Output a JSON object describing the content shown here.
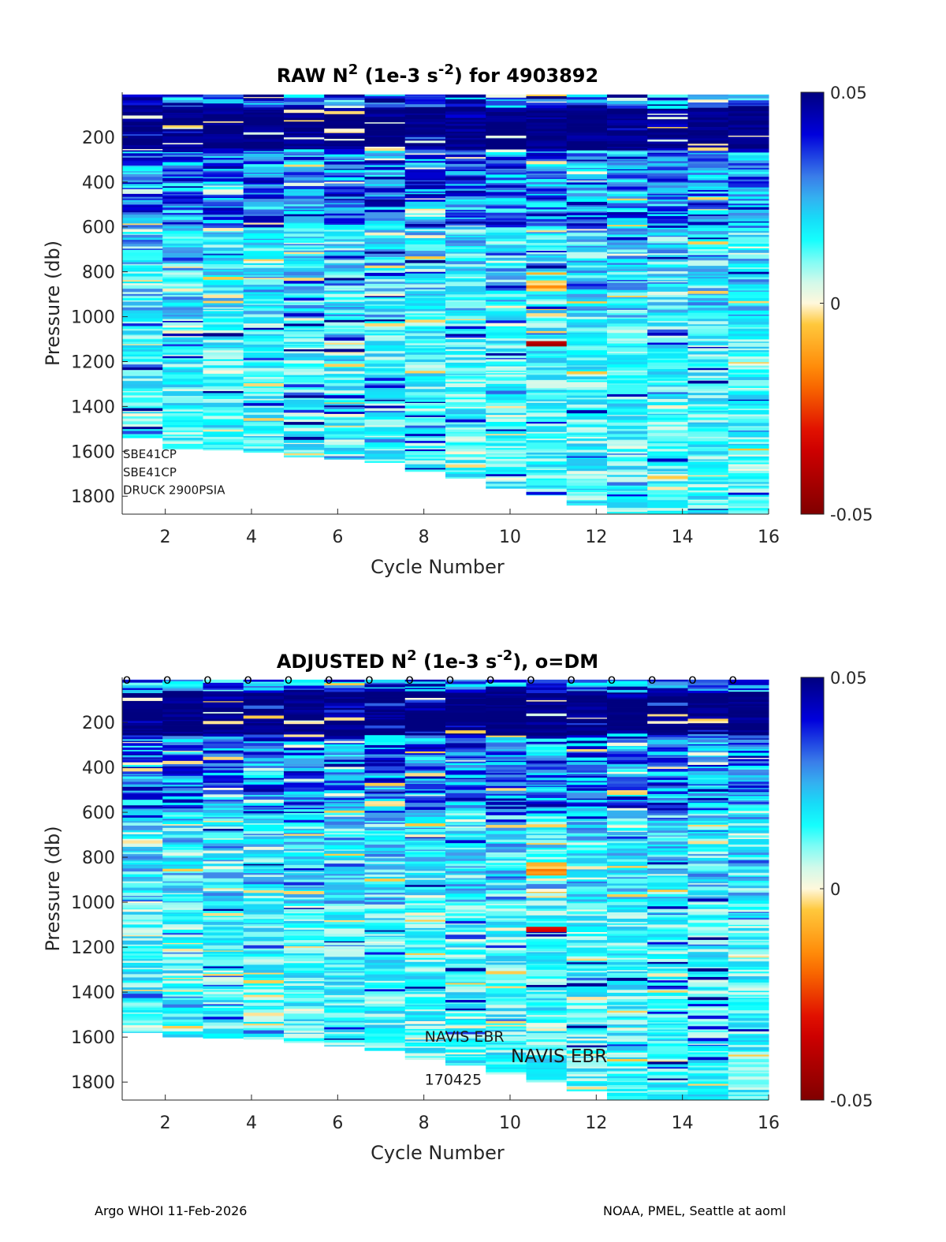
{
  "colors": {
    "low": "#800000",
    "mid_warm": "#ff8000",
    "zero": "#fff8dc",
    "mid_cool": "#00ffff",
    "high": "#00007f"
  },
  "chart_data": [
    {
      "type": "heatmap",
      "title_pre": "RAW N",
      "title_sup1": "2",
      "title_mid": " (1e-3 s",
      "title_sup2": "-2",
      "title_post": ") for 4903892",
      "xlabel": "Cycle Number",
      "ylabel": "Pressure (db)",
      "xlim": [
        1,
        16
      ],
      "ylim": [
        1880,
        0
      ],
      "xticks": [
        2,
        4,
        6,
        8,
        10,
        12,
        14,
        16
      ],
      "yticks": [
        200,
        400,
        600,
        800,
        1000,
        1200,
        1400,
        1600,
        1800
      ],
      "colorbar": {
        "min": -0.05,
        "max": 0.05,
        "ticks": [
          {
            "value": 0.05,
            "label": "0.05"
          },
          {
            "value": 0,
            "label": "0"
          },
          {
            "value": -0.05,
            "label": "-0.05"
          }
        ]
      },
      "cycles": [
        1,
        2,
        3,
        4,
        5,
        6,
        7,
        8,
        9,
        10,
        11,
        12,
        13,
        14,
        15,
        16
      ],
      "max_pressure": [
        1540,
        1590,
        1595,
        1605,
        1625,
        1635,
        1650,
        1690,
        1720,
        1765,
        1795,
        1840,
        1880,
        1880,
        1880,
        1880
      ],
      "near_zero_bands": [
        [
          1100,
          1130,
          -0.045
        ],
        [
          850,
          880,
          -0.02
        ]
      ],
      "annotations": [
        {
          "text": "SBE41CP",
          "cycle": 1,
          "pressure": 1610
        },
        {
          "text": "SBE41CP",
          "cycle": 1,
          "pressure": 1690
        },
        {
          "text": "DRUCK 2900PSIA",
          "cycle": 1,
          "pressure": 1770
        }
      ],
      "dm_markers": false
    },
    {
      "type": "heatmap",
      "title_pre": "ADJUSTED N",
      "title_sup1": "2",
      "title_mid": " (1e-3 s",
      "title_sup2": "-2",
      "title_post": "), o=DM",
      "xlabel": "Cycle Number",
      "ylabel": "Pressure (db)",
      "xlim": [
        1,
        16
      ],
      "ylim": [
        1880,
        0
      ],
      "xticks": [
        2,
        4,
        6,
        8,
        10,
        12,
        14,
        16
      ],
      "yticks": [
        200,
        400,
        600,
        800,
        1000,
        1200,
        1400,
        1600,
        1800
      ],
      "colorbar": {
        "min": -0.05,
        "max": 0.05,
        "ticks": [
          {
            "value": 0.05,
            "label": "0.05"
          },
          {
            "value": 0,
            "label": "0"
          },
          {
            "value": -0.05,
            "label": "-0.05"
          }
        ]
      },
      "cycles": [
        1,
        2,
        3,
        4,
        5,
        6,
        7,
        8,
        9,
        10,
        11,
        12,
        13,
        14,
        15,
        16
      ],
      "max_pressure": [
        1580,
        1600,
        1605,
        1610,
        1625,
        1640,
        1660,
        1700,
        1725,
        1765,
        1800,
        1840,
        1880,
        1880,
        1880,
        1880
      ],
      "near_zero_bands": [
        [
          1100,
          1130,
          -0.035
        ],
        [
          850,
          880,
          -0.02
        ]
      ],
      "annotations": [
        {
          "text": "NAVIS EBR",
          "cycle": 8,
          "pressure": 1600,
          "size": 19
        },
        {
          "text": "NAVIS EBR",
          "cycle": 10,
          "pressure": 1690,
          "size": 23
        },
        {
          "text": "170425",
          "cycle": 8,
          "pressure": 1790,
          "size": 19
        }
      ],
      "dm_markers": true,
      "dm_symbol": "o",
      "dm_pressure": 0
    }
  ],
  "footer": {
    "left": "Argo WHOI 11-Feb-2026",
    "right": "NOAA, PMEL, Seattle at aoml"
  }
}
